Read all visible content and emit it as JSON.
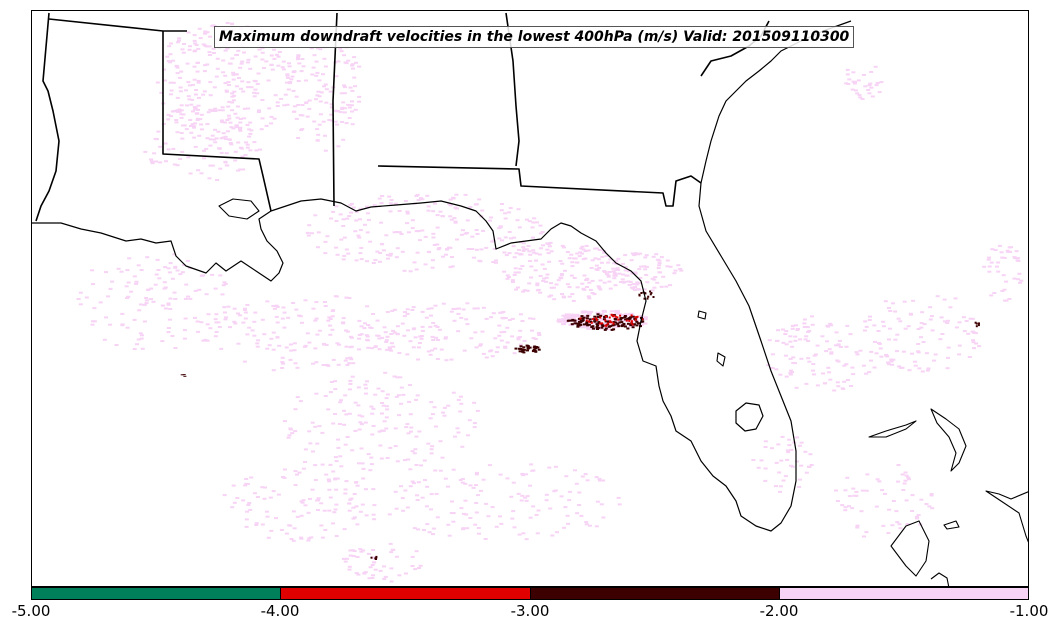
{
  "map": {
    "title": "Maximum downdraft velocities in the lowest 400hPa (m/s) Valid: 201509110300",
    "colors": {
      "light": "#f7d3f5",
      "dark": "#3d0000",
      "red": "#e00000",
      "green": "#00805a"
    }
  },
  "colorbar": {
    "segments": [
      {
        "from": -5.0,
        "to": -4.0,
        "color": "#00805a"
      },
      {
        "from": -4.0,
        "to": -3.0,
        "color": "#e00000"
      },
      {
        "from": -3.0,
        "to": -2.0,
        "color": "#3d0000"
      },
      {
        "from": -2.0,
        "to": -1.0,
        "color": "#f7d3f5"
      }
    ],
    "tick_labels": [
      "-5.00",
      "-4.00",
      "-3.00",
      "-2.00",
      "-1.00"
    ]
  }
}
